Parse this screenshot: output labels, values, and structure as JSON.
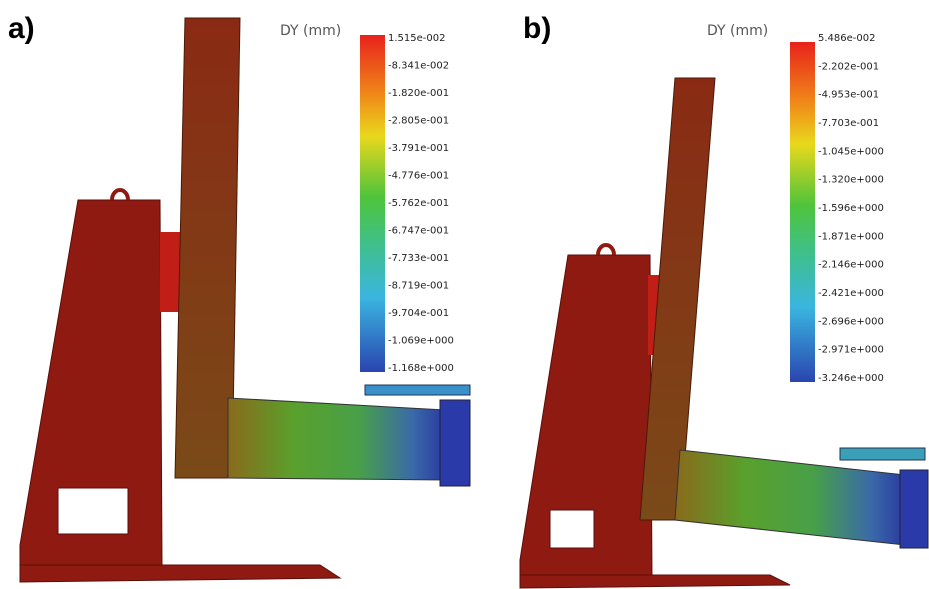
{
  "panels": [
    {
      "label": "a)",
      "legend_title": "DY (mm)",
      "legend_labels": [
        "1.515e-002",
        "-8.341e-002",
        "-1.820e-001",
        "-2.805e-001",
        "-3.791e-001",
        "-4.776e-001",
        "-5.762e-001",
        "-6.747e-001",
        "-7.733e-001",
        "-8.719e-001",
        "-9.704e-001",
        "-1.069e+000",
        "-1.168e+000"
      ]
    },
    {
      "label": "b)",
      "legend_title": "DY (mm)",
      "legend_labels": [
        "5.486e-002",
        "-2.202e-001",
        "-4.953e-001",
        "-7.703e-001",
        "-1.045e+000",
        "-1.320e+000",
        "-1.596e+000",
        "-1.871e+000",
        "-2.146e+000",
        "-2.421e+000",
        "-2.696e+000",
        "-2.971e+000",
        "-3.246e+000"
      ]
    }
  ]
}
